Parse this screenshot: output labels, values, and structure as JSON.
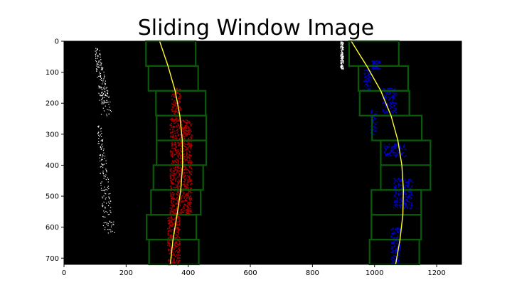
{
  "chart_data": {
    "type": "image",
    "title": "Sliding Window Image",
    "xlim": [
      0,
      1280
    ],
    "ylim": [
      720,
      0
    ],
    "xticks": [
      0,
      200,
      400,
      600,
      800,
      1000,
      1200
    ],
    "yticks": [
      0,
      100,
      200,
      300,
      400,
      500,
      600,
      700
    ],
    "colors": {
      "background": "#000000",
      "windows": "#0a5a0a",
      "left_pixels": "#b00000",
      "right_pixels": "#0000c8",
      "fit": "#ffff33",
      "edges": "#ffffff"
    },
    "left_windows": [
      {
        "x0": 264,
        "x1": 424,
        "y0": 0,
        "y1": 80
      },
      {
        "x0": 272,
        "x1": 432,
        "y0": 80,
        "y1": 160
      },
      {
        "x0": 296,
        "x1": 456,
        "y0": 160,
        "y1": 240
      },
      {
        "x0": 298,
        "x1": 458,
        "y0": 240,
        "y1": 320
      },
      {
        "x0": 298,
        "x1": 458,
        "y0": 320,
        "y1": 400
      },
      {
        "x0": 288,
        "x1": 448,
        "y0": 400,
        "y1": 480
      },
      {
        "x0": 280,
        "x1": 440,
        "y0": 480,
        "y1": 560
      },
      {
        "x0": 266,
        "x1": 426,
        "y0": 560,
        "y1": 640
      },
      {
        "x0": 274,
        "x1": 434,
        "y0": 640,
        "y1": 720
      }
    ],
    "right_windows": [
      {
        "x0": 918,
        "x1": 1078,
        "y0": 0,
        "y1": 80
      },
      {
        "x0": 948,
        "x1": 1108,
        "y0": 80,
        "y1": 160
      },
      {
        "x0": 952,
        "x1": 1112,
        "y0": 160,
        "y1": 240
      },
      {
        "x0": 992,
        "x1": 1152,
        "y0": 240,
        "y1": 320
      },
      {
        "x0": 1020,
        "x1": 1180,
        "y0": 320,
        "y1": 400
      },
      {
        "x0": 1020,
        "x1": 1180,
        "y0": 400,
        "y1": 480
      },
      {
        "x0": 990,
        "x1": 1150,
        "y0": 480,
        "y1": 560
      },
      {
        "x0": 990,
        "x1": 1150,
        "y0": 560,
        "y1": 640
      },
      {
        "x0": 984,
        "x1": 1144,
        "y0": 640,
        "y1": 720
      }
    ],
    "left_fit": [
      {
        "x": 308,
        "y": 0
      },
      {
        "x": 335,
        "y": 80
      },
      {
        "x": 358,
        "y": 160
      },
      {
        "x": 373,
        "y": 240
      },
      {
        "x": 381,
        "y": 320
      },
      {
        "x": 382,
        "y": 400
      },
      {
        "x": 376,
        "y": 480
      },
      {
        "x": 364,
        "y": 560
      },
      {
        "x": 351,
        "y": 640
      },
      {
        "x": 342,
        "y": 720
      }
    ],
    "right_fit": [
      {
        "x": 925,
        "y": 0
      },
      {
        "x": 975,
        "y": 80
      },
      {
        "x": 1020,
        "y": 160
      },
      {
        "x": 1053,
        "y": 240
      },
      {
        "x": 1075,
        "y": 320
      },
      {
        "x": 1088,
        "y": 400
      },
      {
        "x": 1093,
        "y": 480
      },
      {
        "x": 1091,
        "y": 560
      },
      {
        "x": 1082,
        "y": 640
      },
      {
        "x": 1068,
        "y": 720
      }
    ],
    "left_lane_pixels": [
      {
        "y0": 150,
        "y1": 260,
        "xc": 360,
        "w": 30
      },
      {
        "y0": 250,
        "y1": 560,
        "xc": 375,
        "w": 70
      },
      {
        "y0": 560,
        "y1": 720,
        "xc": 352,
        "w": 40
      }
    ],
    "right_lane_pixels": [
      {
        "y0": 60,
        "y1": 90,
        "xc": 1003,
        "w": 28
      },
      {
        "y0": 90,
        "y1": 160,
        "xc": 975,
        "w": 24
      },
      {
        "y0": 150,
        "y1": 230,
        "xc": 1047,
        "w": 46
      },
      {
        "y0": 220,
        "y1": 300,
        "xc": 995,
        "w": 20
      },
      {
        "y0": 330,
        "y1": 370,
        "xc": 1065,
        "w": 70
      },
      {
        "y0": 440,
        "y1": 540,
        "xc": 1090,
        "w": 60
      },
      {
        "y0": 600,
        "y1": 720,
        "xc": 1066,
        "w": 30
      }
    ],
    "edge_pixels": [
      {
        "y0": 20,
        "y1": 240,
        "x0": 80,
        "x1": 155
      },
      {
        "y0": 270,
        "y1": 620,
        "x0": 90,
        "x1": 162
      },
      {
        "y0": 0,
        "y1": 90,
        "x0": 880,
        "x1": 925
      }
    ]
  }
}
